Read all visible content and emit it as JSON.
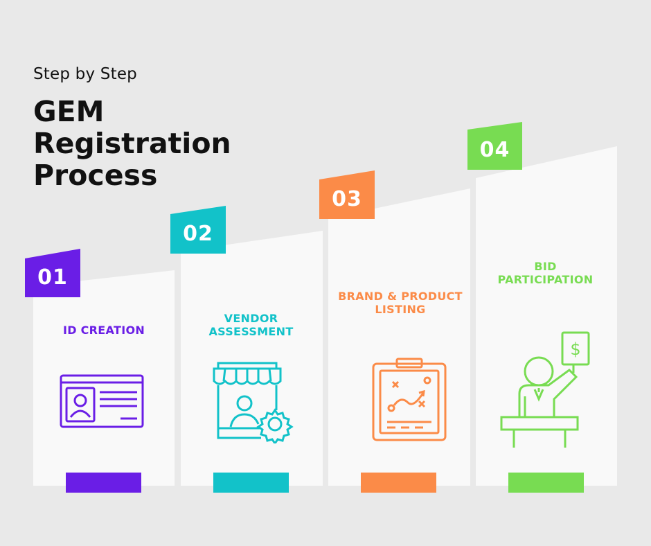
{
  "header": {
    "subtitle": "Step by Step",
    "title_lines": [
      "GEM",
      "Registration",
      "Process"
    ]
  },
  "steps": [
    {
      "number": "01",
      "label": "ID CREATION",
      "color": "#6a1ee6",
      "icon": "id-card-icon"
    },
    {
      "number": "02",
      "label": "VENDOR ASSESSMENT",
      "color": "#12c2c9",
      "icon": "vendor-shop-icon"
    },
    {
      "number": "03",
      "label": "BRAND & PRODUCT LISTING",
      "color": "#fb8b48",
      "icon": "strategy-clipboard-icon"
    },
    {
      "number": "04",
      "label": "BID PARTICIPATION",
      "color": "#78dc52",
      "icon": "bidder-icon"
    }
  ]
}
